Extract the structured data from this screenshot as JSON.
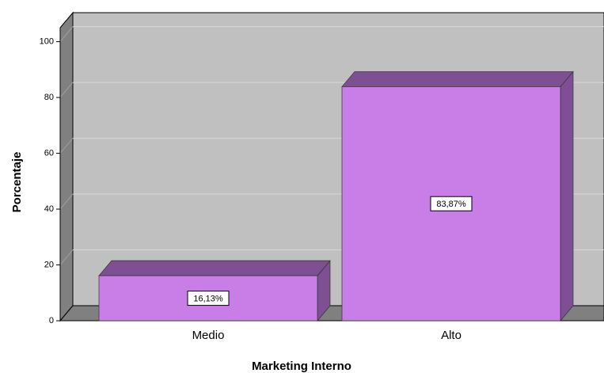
{
  "chart_data": {
    "type": "bar3d",
    "x_label": "Marketing Interno",
    "y_label": "Porcentaje",
    "categories": [
      "Medio",
      "Alto"
    ],
    "values": [
      16.13,
      83.87
    ],
    "value_labels": [
      "16,13%",
      "83,87%"
    ],
    "color": "#c87ee6",
    "ylim": [
      0,
      105
    ],
    "yticks": [
      0,
      20,
      40,
      60,
      80,
      100
    ],
    "grid": true
  }
}
